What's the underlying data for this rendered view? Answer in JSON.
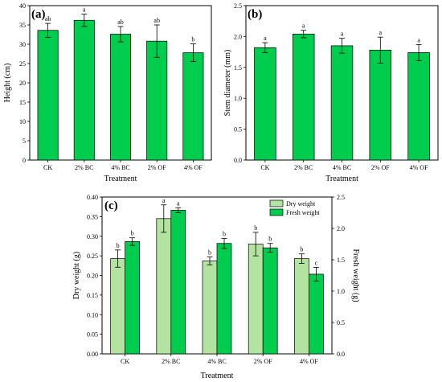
{
  "colors": {
    "bar_green": "#00cc4d",
    "bar_light_green": "#b3e3a0",
    "axis": "#000000"
  },
  "chart_data": [
    {
      "type": "bar",
      "panel_label": "(a)",
      "categories": [
        "CK",
        "2% BC",
        "4% BC",
        "2% OF",
        "4% OF"
      ],
      "values": [
        33.6,
        36.2,
        32.6,
        30.8,
        27.8
      ],
      "errors": [
        1.8,
        1.6,
        2.0,
        4.2,
        2.3
      ],
      "significance": [
        "ab",
        "a",
        "ab",
        "ab",
        "b"
      ],
      "xlabel": "Treatment",
      "ylabel": "Height (cm)",
      "ylim": [
        0,
        40
      ],
      "yticks": [
        "0",
        "5",
        "10",
        "15",
        "20",
        "25",
        "30",
        "35",
        "40"
      ]
    },
    {
      "type": "bar",
      "panel_label": "(b)",
      "categories": [
        "CK",
        "2% BC",
        "4% BC",
        "2% OF",
        "4% OF"
      ],
      "values": [
        1.82,
        2.04,
        1.85,
        1.78,
        1.74
      ],
      "errors": [
        0.08,
        0.06,
        0.12,
        0.21,
        0.13
      ],
      "significance": [
        "a",
        "a",
        "a",
        "a",
        "a"
      ],
      "xlabel": "Treatment",
      "ylabel": "Stem diameter (mm)",
      "ylim": [
        0,
        2.5
      ],
      "yticks": [
        "0.0",
        "0.5",
        "1.0",
        "1.5",
        "2.0",
        "2.5"
      ]
    },
    {
      "type": "bar",
      "panel_label": "(c)",
      "categories": [
        "CK",
        "2% BC",
        "4% BC",
        "2% OF",
        "4% OF"
      ],
      "xlabel": "Treatment",
      "ylabel": "Dry weight (g)",
      "ylabel_right": "Fresh weight (g)",
      "ylim": [
        0,
        0.4
      ],
      "ylim_right": [
        0,
        2.5
      ],
      "yticks": [
        "0.00",
        "0.05",
        "0.10",
        "0.15",
        "0.20",
        "0.25",
        "0.30",
        "0.35",
        "0.40"
      ],
      "yticks_right": [
        "0.0",
        "0.5",
        "1.0",
        "1.5",
        "2.0",
        "2.5"
      ],
      "legend_position": "top-right",
      "series": [
        {
          "name": "Dry weight",
          "axis": "left",
          "values": [
            0.243,
            0.345,
            0.237,
            0.28,
            0.243
          ],
          "errors": [
            0.022,
            0.035,
            0.01,
            0.03,
            0.012
          ],
          "significance": [
            "b",
            "a",
            "b",
            "b",
            "b"
          ]
        },
        {
          "name": "Fresh weight",
          "axis": "right",
          "values": [
            1.79,
            2.29,
            1.76,
            1.69,
            1.27
          ],
          "errors": [
            0.06,
            0.04,
            0.08,
            0.07,
            0.11
          ],
          "significance": [
            "b",
            "a",
            "b",
            "b",
            "c"
          ]
        }
      ]
    }
  ]
}
